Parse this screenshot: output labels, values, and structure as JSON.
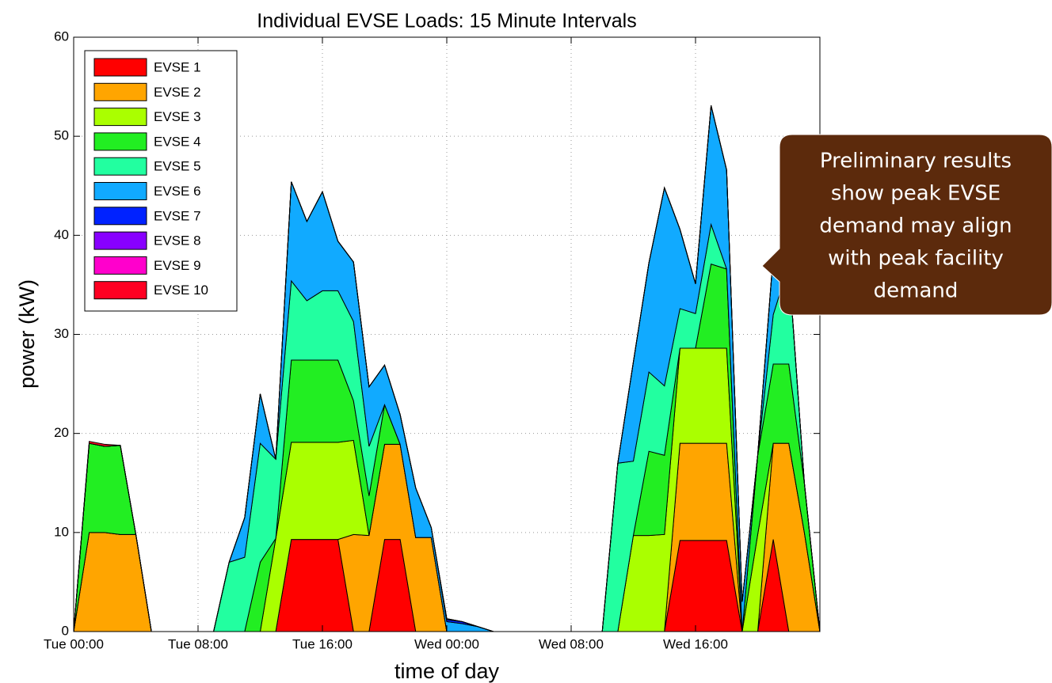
{
  "chart_data": {
    "type": "stacked-area",
    "title": "Individual EVSE Loads: 15 Minute Intervals",
    "xlabel": "time of day",
    "ylabel": "power (kW)",
    "x": [
      0,
      1,
      2,
      3,
      4,
      5,
      6,
      7,
      8,
      9,
      10,
      11,
      12,
      13,
      14,
      15,
      16,
      17,
      18,
      19,
      20,
      21,
      22,
      23,
      24,
      25,
      26,
      27,
      28,
      29,
      30,
      31,
      32,
      33,
      34,
      35,
      36,
      37,
      38,
      39,
      40,
      41,
      42,
      43,
      44,
      45,
      46,
      47,
      48
    ],
    "xlim": [
      0,
      48
    ],
    "xticks": [
      {
        "value": 0,
        "label": "Tue 00:00"
      },
      {
        "value": 8,
        "label": "Tue 08:00"
      },
      {
        "value": 16,
        "label": "Tue 16:00"
      },
      {
        "value": 24,
        "label": "Wed 00:00"
      },
      {
        "value": 32,
        "label": "Wed 08:00"
      },
      {
        "value": 40,
        "label": "Wed 16:00"
      }
    ],
    "ylim": [
      0,
      60
    ],
    "yticks": [
      0,
      10,
      20,
      30,
      40,
      50,
      60
    ],
    "grid": true,
    "legend": "upper left",
    "series": [
      {
        "name": "EVSE 1",
        "color": "#ff0000",
        "values": [
          0,
          0,
          0,
          0,
          0,
          0,
          0,
          0,
          0,
          0,
          0,
          0,
          0,
          0,
          9.3,
          9.3,
          9.3,
          9.3,
          0,
          0,
          9.3,
          9.3,
          0,
          0,
          0,
          0,
          0,
          0,
          0,
          0,
          0,
          0,
          0,
          0,
          0,
          0,
          0,
          0,
          0,
          9.2,
          9.2,
          9.2,
          9.2,
          0,
          0,
          9.3,
          0,
          0,
          0
        ]
      },
      {
        "name": "EVSE 2",
        "color": "#ffa500",
        "values": [
          0,
          10,
          10,
          9.8,
          9.8,
          0,
          0,
          0,
          0,
          0,
          0,
          0,
          0,
          0,
          0,
          0,
          0,
          0,
          9.8,
          9.7,
          9.6,
          9.6,
          9.5,
          9.5,
          0,
          0,
          0,
          0,
          0,
          0,
          0,
          0,
          0,
          0,
          0,
          0,
          0,
          0,
          0,
          9.8,
          9.8,
          9.8,
          9.8,
          0,
          0,
          9.7,
          19,
          10,
          0
        ]
      },
      {
        "name": "EVSE 3",
        "color": "#aaff00",
        "values": [
          0,
          0,
          0,
          0,
          0,
          0,
          0,
          0,
          0,
          0,
          0,
          0,
          0,
          9.4,
          9.8,
          9.8,
          9.8,
          9.8,
          9.5,
          0,
          0,
          0,
          0,
          0,
          0,
          0,
          0,
          0,
          0,
          0,
          0,
          0,
          0,
          0,
          0,
          0,
          9.7,
          9.7,
          9.8,
          9.6,
          9.6,
          9.6,
          9.6,
          0,
          9.8,
          0,
          0,
          0,
          0
        ]
      },
      {
        "name": "EVSE 4",
        "color": "#22ee22",
        "values": [
          0,
          9,
          8.7,
          9,
          0,
          0,
          0,
          0,
          0,
          0,
          0,
          0,
          7,
          0,
          8.3,
          8.3,
          8.3,
          8.3,
          4,
          4,
          4,
          0,
          0,
          0,
          0,
          0,
          0,
          0,
          0,
          0,
          0,
          0,
          0,
          0,
          0,
          0,
          0,
          8.5,
          8,
          0,
          0,
          8.5,
          8,
          0,
          8,
          8,
          8,
          5,
          0
        ]
      },
      {
        "name": "EVSE 5",
        "color": "#22ffa0",
        "values": [
          0,
          0,
          0,
          0,
          0,
          0,
          0,
          0,
          0,
          0,
          7,
          7.5,
          12,
          8,
          8,
          6,
          7,
          7,
          8,
          5,
          0,
          0,
          0,
          0,
          0,
          0,
          0,
          0,
          0,
          0,
          0,
          0,
          0,
          0,
          0,
          17,
          7.5,
          8,
          7,
          4,
          3.5,
          4,
          0,
          0,
          0,
          5,
          10,
          0,
          0
        ]
      },
      {
        "name": "EVSE 6",
        "color": "#11aaff",
        "values": [
          0,
          0,
          0,
          0,
          0,
          0,
          0,
          0,
          0,
          0,
          0,
          4,
          5,
          0,
          10,
          8,
          10,
          5,
          6,
          6,
          4,
          3,
          5,
          1,
          1,
          0.8,
          0.5,
          0,
          0,
          0,
          0,
          0,
          0,
          0,
          0,
          0,
          10,
          11,
          20,
          8,
          3,
          12,
          10,
          3,
          0,
          6,
          0,
          0,
          0
        ]
      },
      {
        "name": "EVSE 7",
        "color": "#0022ff",
        "values": [
          0,
          0,
          0,
          0,
          0,
          0,
          0,
          0,
          0,
          0,
          0,
          0,
          0,
          0,
          0,
          0,
          0,
          0,
          0,
          0,
          0,
          0,
          0,
          0,
          0.2,
          0.2,
          0,
          0,
          0,
          0,
          0,
          0,
          0,
          0,
          0,
          0,
          0,
          0,
          0,
          0,
          0,
          0,
          0,
          0,
          0,
          0,
          0,
          0,
          0
        ]
      },
      {
        "name": "EVSE 8",
        "color": "#8800ff",
        "values": [
          0,
          0,
          0,
          0,
          0,
          0,
          0,
          0,
          0,
          0,
          0,
          0,
          0,
          0,
          0,
          0,
          0,
          0,
          0,
          0,
          0,
          0,
          0,
          0,
          0.1,
          0,
          0,
          0,
          0,
          0,
          0,
          0,
          0,
          0,
          0,
          0,
          0,
          0,
          0,
          0,
          0,
          0,
          0,
          0,
          0,
          0,
          0,
          0,
          0
        ]
      },
      {
        "name": "EVSE 9",
        "color": "#ff00cc",
        "values": [
          0,
          0,
          0,
          0,
          0,
          0,
          0,
          0,
          0,
          0,
          0,
          0,
          0,
          0,
          0,
          0,
          0,
          0,
          0,
          0,
          0,
          0,
          0,
          0,
          0,
          0,
          0,
          0,
          0,
          0,
          0,
          0,
          0,
          0,
          0,
          0,
          0,
          0,
          0,
          0,
          0,
          0,
          0,
          0,
          0,
          0,
          0,
          0,
          0
        ]
      },
      {
        "name": "EVSE 10",
        "color": "#ff0022",
        "values": [
          0,
          0.2,
          0.2,
          0,
          0,
          0,
          0,
          0,
          0,
          0,
          0,
          0,
          0,
          0,
          0,
          0,
          0,
          0,
          0,
          0,
          0,
          0,
          0,
          0,
          0,
          0,
          0,
          0,
          0,
          0,
          0,
          0,
          0,
          0,
          0,
          0,
          0,
          0,
          0,
          0,
          0,
          0,
          0,
          0,
          0,
          0,
          0,
          0,
          0
        ]
      }
    ],
    "annotation": [
      "Preliminary results",
      "show peak EVSE",
      "demand may align",
      "with peak facility",
      "demand"
    ]
  }
}
